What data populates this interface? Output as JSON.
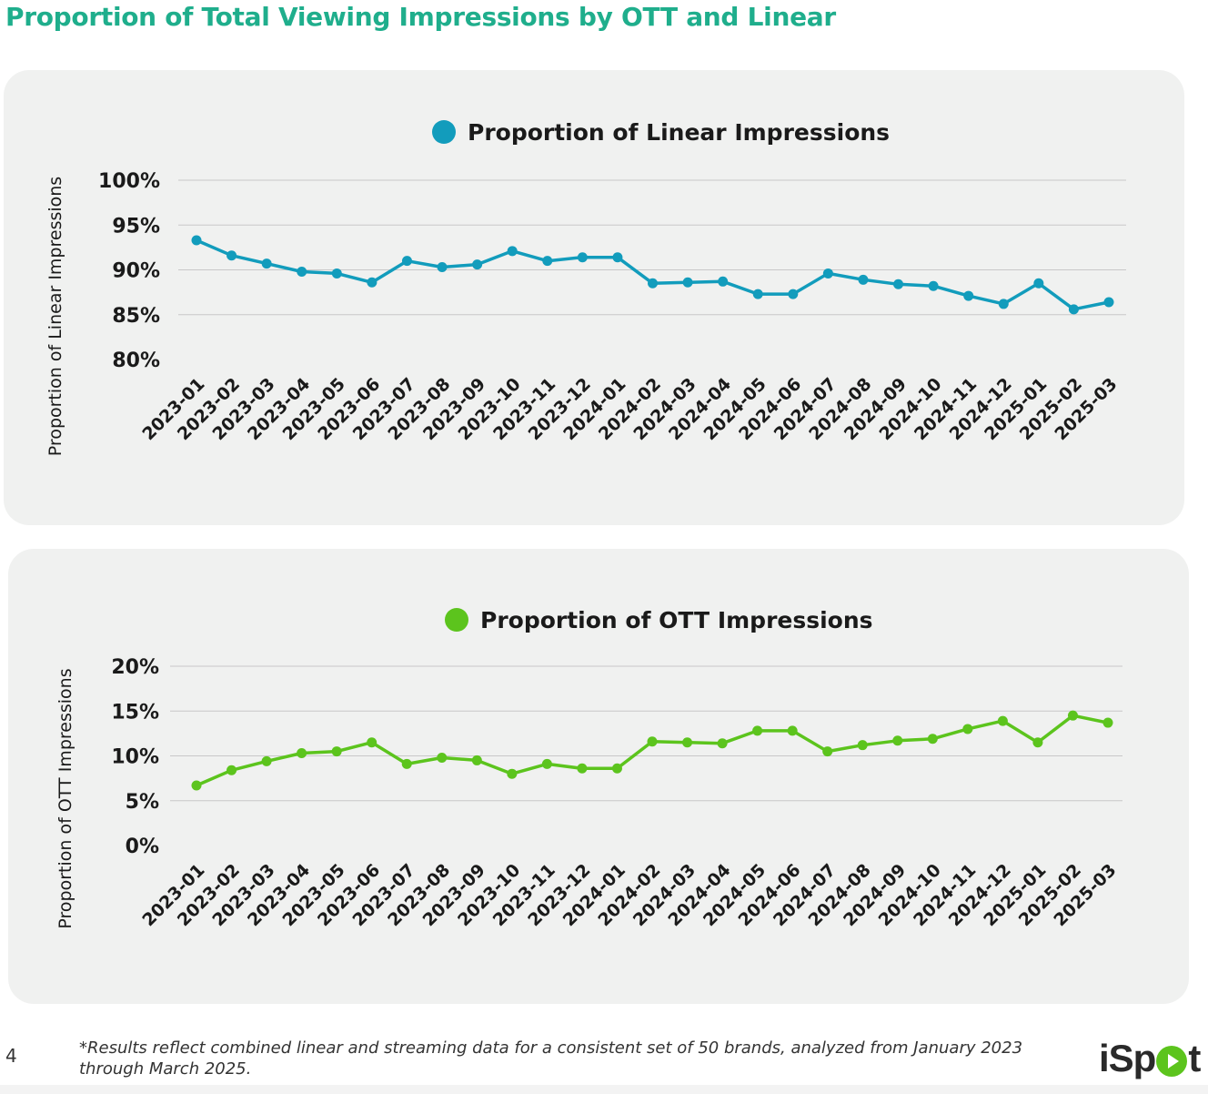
{
  "page": {
    "title": "Proportion of Total Viewing Impressions by OTT and Linear",
    "page_number": "4",
    "footnote": "*Results reflect combined linear and streaming data for a consistent set of 50 brands, analyzed from January 2023 through March 2025.",
    "logo_text_before": "iSp",
    "logo_text_after": "t",
    "logo_play_icon": "play-circle-icon"
  },
  "colors": {
    "title": "#1fae8c",
    "linear": "#129cbc",
    "ott": "#5cc41d",
    "grid": "#c8c8c8",
    "panel": "#f0f1f0"
  },
  "chart_data": [
    {
      "type": "line",
      "title": "",
      "legend": "Proportion of Linear Impressions",
      "legend_position": "top-center",
      "xlabel": "",
      "ylabel": "Proportion of Linear Impressions",
      "ylim": [
        80,
        100
      ],
      "yticks": [
        80,
        85,
        90,
        95,
        100
      ],
      "ytick_labels": [
        "80%",
        "85%",
        "90%",
        "95%",
        "100%"
      ],
      "grid": true,
      "categories": [
        "2023-01",
        "2023-02",
        "2023-03",
        "2023-04",
        "2023-05",
        "2023-06",
        "2023-07",
        "2023-08",
        "2023-09",
        "2023-10",
        "2023-11",
        "2023-12",
        "2024-01",
        "2024-02",
        "2024-03",
        "2024-04",
        "2024-05",
        "2024-06",
        "2024-07",
        "2024-08",
        "2024-09",
        "2024-10",
        "2024-11",
        "2024-12",
        "2025-01",
        "2025-02",
        "2025-03"
      ],
      "series": [
        {
          "name": "Proportion of Linear Impressions",
          "color": "#129cbc",
          "values": [
            93.3,
            91.6,
            90.7,
            89.8,
            89.6,
            88.6,
            91.0,
            90.3,
            90.6,
            92.1,
            91.0,
            91.4,
            91.4,
            88.5,
            88.6,
            88.7,
            87.3,
            87.3,
            89.6,
            88.9,
            88.4,
            88.2,
            87.1,
            86.2,
            88.5,
            85.6,
            86.4
          ]
        }
      ]
    },
    {
      "type": "line",
      "title": "",
      "legend": "Proportion of OTT Impressions",
      "legend_position": "top-center",
      "xlabel": "",
      "ylabel": "Proportion of OTT Impressions",
      "ylim": [
        0,
        20
      ],
      "yticks": [
        0,
        5,
        10,
        15,
        20
      ],
      "ytick_labels": [
        "0%",
        "5%",
        "10%",
        "15%",
        "20%"
      ],
      "grid": true,
      "categories": [
        "2023-01",
        "2023-02",
        "2023-03",
        "2023-04",
        "2023-05",
        "2023-06",
        "2023-07",
        "2023-08",
        "2023-09",
        "2023-10",
        "2023-11",
        "2023-12",
        "2024-01",
        "2024-02",
        "2024-03",
        "2024-04",
        "2024-05",
        "2024-06",
        "2024-07",
        "2024-08",
        "2024-09",
        "2024-10",
        "2024-11",
        "2024-12",
        "2025-01",
        "2025-02",
        "2025-03"
      ],
      "series": [
        {
          "name": "Proportion of OTT Impressions",
          "color": "#5cc41d",
          "values": [
            6.7,
            8.4,
            9.4,
            10.3,
            10.5,
            11.5,
            9.1,
            9.8,
            9.5,
            8.0,
            9.1,
            8.6,
            8.6,
            11.6,
            11.5,
            11.4,
            12.8,
            12.8,
            10.5,
            11.2,
            11.7,
            11.9,
            13.0,
            13.9,
            11.5,
            14.5,
            13.7
          ]
        }
      ]
    }
  ]
}
